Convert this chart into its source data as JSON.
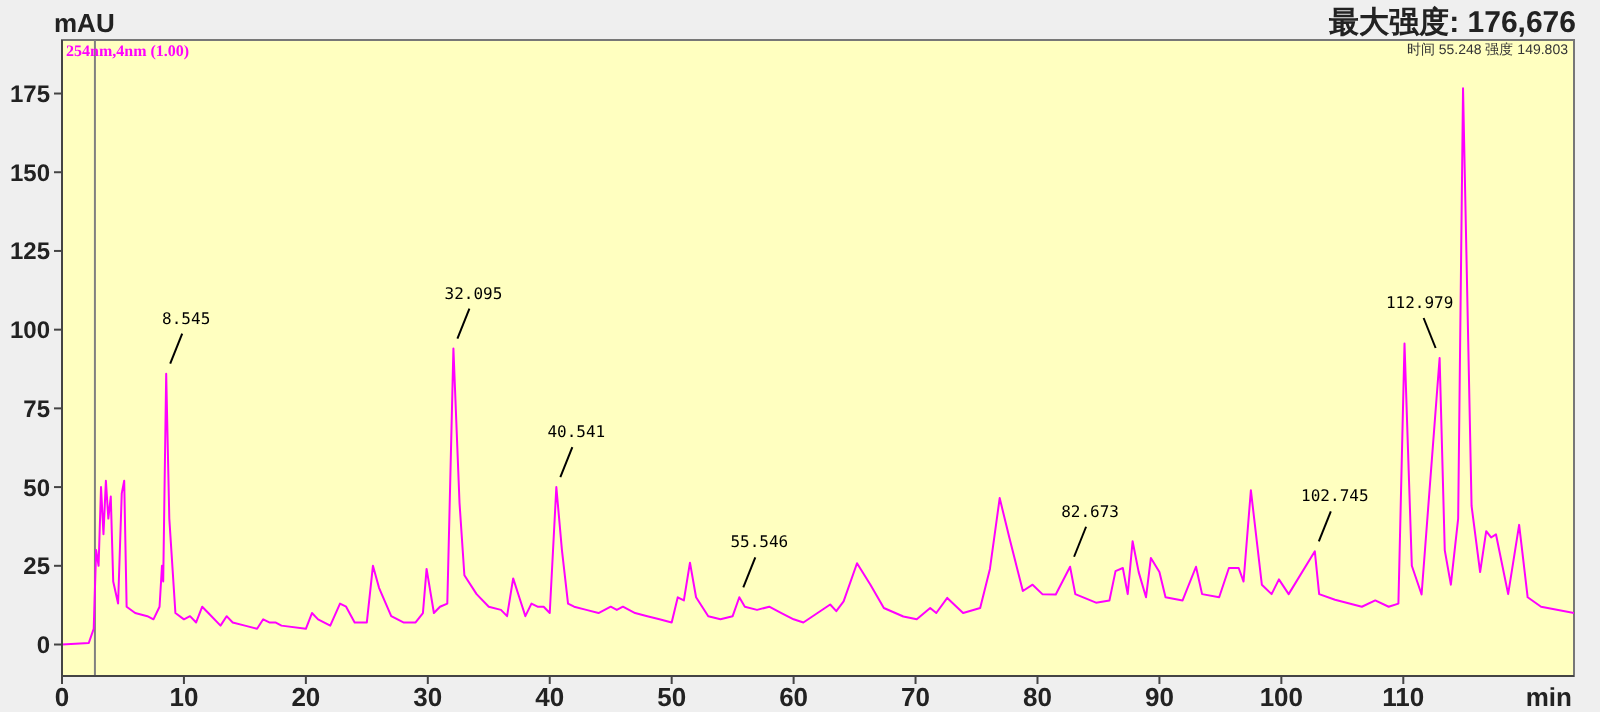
{
  "chart_data": {
    "type": "line",
    "title": "最大强度: 176,676",
    "xlabel": "min",
    "ylabel": "mAU",
    "x": [
      0,
      2.2,
      2.6,
      2.8,
      3.0,
      3.2,
      3.4,
      3.6,
      3.8,
      4.0,
      4.2,
      4.6,
      4.9,
      5.1,
      5.3,
      6,
      7,
      7.5,
      8.0,
      8.2,
      8.3,
      8.545,
      8.8,
      9.3,
      10,
      10.5,
      11,
      11.5,
      12,
      13,
      13.5,
      14,
      15,
      16,
      16.5,
      17,
      17.5,
      18,
      20,
      20.5,
      21,
      22,
      22.8,
      23.3,
      24,
      25,
      25.5,
      26,
      27,
      28,
      29,
      29.6,
      29.9,
      30.5,
      31,
      31.6,
      32.1,
      32.6,
      33,
      34,
      35,
      36,
      36.5,
      37,
      37.5,
      38,
      38.5,
      39,
      39.5,
      40,
      40.541,
      41,
      41.5,
      42,
      43,
      44,
      45,
      45.5,
      46,
      47,
      48,
      49,
      50,
      50.5,
      51,
      51.5,
      52,
      53,
      54,
      55,
      55.546,
      56,
      57,
      58,
      59,
      60,
      60.8,
      63.0,
      63.5,
      64.1,
      65.2,
      66.3,
      67.4,
      69.0,
      70.1,
      71.2,
      71.7,
      72.6,
      73.9,
      75.3,
      76.1,
      76.9,
      77.7,
      78.8,
      79.6,
      80.4,
      81.5,
      82.673,
      83.1,
      84.8,
      85.9,
      86.4,
      87.0,
      87.4,
      87.8,
      88.3,
      88.9,
      89.3,
      90.0,
      90.5,
      91.9,
      93.0,
      93.5,
      94.9,
      95.7,
      96.5,
      96.9,
      97.5,
      98.4,
      99.2,
      99.8,
      100.6,
      102.745,
      103.1,
      104.4,
      106.6,
      107.7,
      108.8,
      109.6,
      110.1,
      110.7,
      111.5,
      112.979,
      113.4,
      113.9,
      114.5,
      114.9,
      115.6,
      116.3,
      116.8,
      117.2,
      117.6,
      118.6,
      119.5,
      120.2,
      121.3,
      124.0
    ],
    "series": [
      {
        "name": "254nm,4nm (1.00)",
        "color": "#ff00ff",
        "values": [
          0,
          0.5,
          5,
          30,
          25,
          50,
          35,
          52,
          40,
          47,
          20,
          13,
          48,
          52,
          12,
          10,
          9,
          8,
          12,
          25,
          20,
          86,
          40,
          10,
          8,
          9,
          7,
          12,
          10,
          6,
          9,
          7,
          6,
          5,
          8,
          7,
          7,
          6,
          5,
          10,
          8,
          6,
          13,
          12,
          7,
          7,
          25,
          18,
          9,
          7,
          7,
          10,
          24,
          10,
          12,
          13,
          94,
          45,
          22,
          16,
          12,
          11,
          9,
          21,
          15,
          9,
          13,
          12,
          12,
          10,
          50,
          30,
          13,
          12,
          11,
          10,
          12,
          11,
          12,
          10,
          9,
          8,
          7,
          15,
          14,
          26,
          15,
          9,
          8,
          9,
          15,
          12,
          11,
          12,
          10,
          8,
          7,
          12.7,
          10.6,
          13.7,
          25.8,
          19,
          11.6,
          8.9,
          8,
          11.6,
          10,
          14.8,
          10,
          11.6,
          24,
          46.5,
          33.8,
          17,
          19,
          16,
          15.9,
          24.7,
          16,
          13.3,
          14,
          23.3,
          24.3,
          16,
          32.8,
          23,
          15,
          27.5,
          23,
          15,
          14,
          24.7,
          16,
          15,
          24.3,
          24.3,
          20,
          49,
          19,
          16,
          20.7,
          16,
          29.6,
          16,
          14.2,
          12,
          14,
          12,
          13,
          95.6,
          25,
          15.9,
          91,
          30,
          19,
          40,
          176.7,
          44,
          23,
          36,
          34,
          35,
          16,
          38,
          15,
          12,
          10
        ]
      }
    ],
    "xlim": [
      0,
      124
    ],
    "ylim": [
      -10,
      192
    ],
    "xticks": [
      0,
      10,
      20,
      30,
      40,
      50,
      60,
      70,
      80,
      90,
      100,
      110
    ],
    "yticks": [
      0,
      25,
      50,
      75,
      100,
      125,
      150,
      175
    ],
    "marker": "none",
    "line_style": "solid",
    "ref_lines": [
      {
        "axis": "x",
        "value": 2.7,
        "color": "#808080"
      }
    ],
    "annotations": [
      {
        "text": "8.545",
        "x": 8.545,
        "y": 86
      },
      {
        "text": "32.095",
        "x": 32.1,
        "y": 94
      },
      {
        "text": "40.541",
        "x": 40.541,
        "y": 50
      },
      {
        "text": "55.546",
        "x": 55.546,
        "y": 15
      },
      {
        "text": "82.673",
        "x": 82.673,
        "y": 24.7
      },
      {
        "text": "102.745",
        "x": 102.745,
        "y": 29.6
      },
      {
        "text": "112.979",
        "x": 112.979,
        "y": 91
      },
      "时间 55.248 强度 149.803"
    ]
  }
}
